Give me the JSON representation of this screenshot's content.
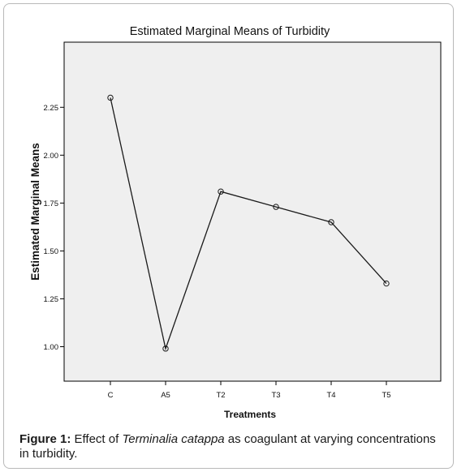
{
  "chart_data": {
    "type": "line",
    "title": "Estimated Marginal Means of Turbidity",
    "xlabel": "Treatments",
    "ylabel": "Estimated Marginal Means",
    "categories": [
      "C",
      "A5",
      "T2",
      "T3",
      "T4",
      "T5"
    ],
    "series": [
      {
        "values": [
          2.3,
          0.99,
          1.81,
          1.73,
          1.65,
          1.33
        ]
      }
    ],
    "ylim": [
      0.82,
      2.59
    ],
    "yticks": [
      "1.00",
      "1.25",
      "1.50",
      "1.75",
      "2.00",
      "2.25"
    ],
    "grid": false,
    "colors": {
      "plot_background": "#efefef",
      "line": "#1a1a1a"
    }
  },
  "caption": {
    "label": "Figure 1:",
    "text_before": " Effect of ",
    "species": "Terminalia catappa",
    "text_after": " as coagulant at varying concentrations in turbidity."
  }
}
